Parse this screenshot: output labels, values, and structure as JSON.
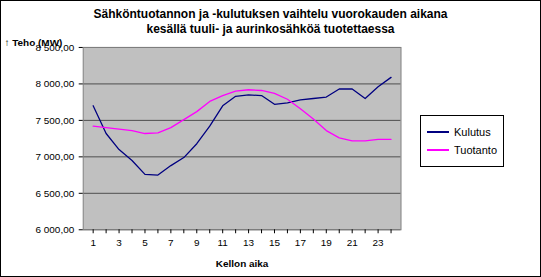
{
  "chart_data": {
    "type": "line",
    "title": "Sähköntuotannon ja -kulutuksen vaihtelu vuorokauden aikana\nkesällä tuuli- ja aurinkosähköä tuotettaessa",
    "x_label": "Kellon aika",
    "y_label": "Teho (MW)",
    "categories": [
      1,
      null,
      3,
      null,
      5,
      null,
      7,
      null,
      9,
      null,
      11,
      null,
      13,
      null,
      15,
      null,
      17,
      null,
      19,
      null,
      21,
      null,
      23,
      null
    ],
    "series": [
      {
        "name": "Kulutus",
        "color": "#000080",
        "values": [
          7700,
          7320,
          7100,
          6950,
          6760,
          6750,
          6880,
          6990,
          7180,
          7420,
          7700,
          7830,
          7850,
          7840,
          7720,
          7740,
          7780,
          7800,
          7820,
          7930,
          7930,
          7800,
          7960,
          8090
        ]
      },
      {
        "name": "Tuotanto",
        "color": "#ff00ff",
        "values": [
          7420,
          7400,
          7380,
          7360,
          7320,
          7330,
          7400,
          7510,
          7620,
          7760,
          7840,
          7900,
          7920,
          7910,
          7870,
          7790,
          7660,
          7520,
          7360,
          7260,
          7220,
          7220,
          7240,
          7240
        ]
      }
    ],
    "ylim": [
      6000,
      8500
    ],
    "yticks": [
      {
        "value": 6000,
        "label": "6 000,00"
      },
      {
        "value": 6500,
        "label": "6 500,00"
      },
      {
        "value": 7000,
        "label": "7 000,00"
      },
      {
        "value": 7500,
        "label": "7 500,00"
      },
      {
        "value": 8000,
        "label": "8 000,00"
      },
      {
        "value": 8500,
        "label": "8 500,00"
      }
    ],
    "grid": true,
    "legend": "right"
  }
}
